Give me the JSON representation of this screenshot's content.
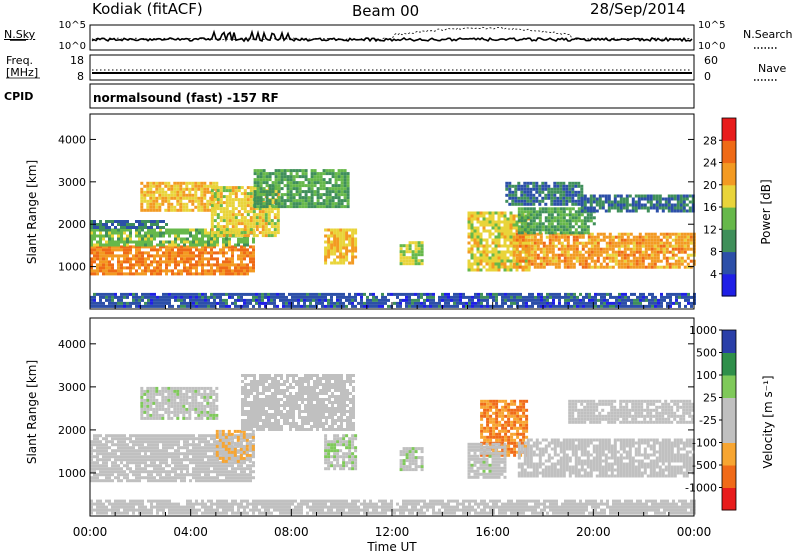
{
  "header": {
    "station": "Kodiak (fitACF)",
    "beam": "Beam 00",
    "date": "28/Sep/2014"
  },
  "strips": {
    "nsky_label": "N.Sky",
    "nsearch_label": "N.Search",
    "freq_label_1": "Freq.",
    "freq_label_2": "[MHz]",
    "nave_label": "Nave",
    "cpid_label": "CPID",
    "cpid_value": "normalsound (fast) -157 RF",
    "noise_ticks_left": [
      "10^5",
      "10^0"
    ],
    "noise_ticks_right": [
      "10^5",
      "10^0"
    ],
    "freq_ticks": [
      "18",
      "8"
    ],
    "nave_ticks": [
      "60",
      "0"
    ]
  },
  "colors": {
    "power": [
      "#1f1fe6",
      "#2c4fa8",
      "#3f8f5a",
      "#66b84a",
      "#e9d43a",
      "#f39a22",
      "#ef6a16",
      "#e81c1c"
    ],
    "velocity": [
      "#e81c1c",
      "#f06a18",
      "#f7a531",
      "#c0c0c0",
      "#c0c0c0",
      "#7fc95a",
      "#2f8f4a",
      "#2a3fa8"
    ],
    "frame": "#000000"
  },
  "chart_data": [
    {
      "type": "heatmap",
      "ylabel": "Slant Range [km]",
      "yticks": [
        "1000",
        "2000",
        "3000",
        "4000"
      ],
      "ylim": [
        0,
        4600
      ],
      "xlim": [
        0,
        24
      ],
      "colorbar": {
        "label": "Power [dB]",
        "ticks": [
          "4",
          "8",
          "12",
          "16",
          "20",
          "24",
          "28"
        ],
        "range": [
          0,
          32
        ]
      },
      "bands": [
        {
          "t0": 0.0,
          "t1": 6.5,
          "r0": 800,
          "r1": 1500,
          "value": 24
        },
        {
          "t0": 0.0,
          "t1": 6.5,
          "r0": 1500,
          "r1": 1900,
          "value": 14
        },
        {
          "t0": 0.0,
          "t1": 3.0,
          "r0": 1900,
          "r1": 2100,
          "value": 8
        },
        {
          "t0": 2.0,
          "t1": 5.0,
          "r0": 2300,
          "r1": 3000,
          "value": 20
        },
        {
          "t0": 4.8,
          "t1": 7.5,
          "r0": 1700,
          "r1": 2900,
          "value": 18
        },
        {
          "t0": 6.5,
          "t1": 10.3,
          "r0": 2400,
          "r1": 3300,
          "value": 12
        },
        {
          "t0": 9.3,
          "t1": 10.6,
          "r0": 1100,
          "r1": 1900,
          "value": 20
        },
        {
          "t0": 12.3,
          "t1": 13.2,
          "r0": 1100,
          "r1": 1600,
          "value": 16
        },
        {
          "t0": 15.0,
          "t1": 17.5,
          "r0": 900,
          "r1": 2300,
          "value": 18
        },
        {
          "t0": 16.8,
          "t1": 24.0,
          "r0": 1000,
          "r1": 1800,
          "value": 22
        },
        {
          "t0": 17.0,
          "t1": 20.0,
          "r0": 1800,
          "r1": 2400,
          "value": 12
        },
        {
          "t0": 19.5,
          "t1": 24.0,
          "r0": 2300,
          "r1": 2700,
          "value": 8
        },
        {
          "t0": 16.5,
          "t1": 19.5,
          "r0": 2500,
          "r1": 3000,
          "value": 8
        },
        {
          "t0": 0.0,
          "t1": 24.0,
          "r0": 80,
          "r1": 380,
          "value": 6
        }
      ]
    },
    {
      "type": "heatmap",
      "ylabel": "Slant Range [km]",
      "yticks": [
        "1000",
        "2000",
        "3000",
        "4000"
      ],
      "ylim": [
        0,
        4600
      ],
      "xlim": [
        0,
        24
      ],
      "xlabel": "Time UT",
      "xticks": [
        "00:00",
        "04:00",
        "08:00",
        "12:00",
        "16:00",
        "20:00",
        "00:00"
      ],
      "colorbar": {
        "label": "Velocity [m s⁻¹]",
        "ticks": [
          "-1000",
          "-500",
          "-100",
          "-25",
          "25",
          "100",
          "500",
          "1000"
        ],
        "range": [
          -1200,
          1200
        ]
      },
      "bands": [
        {
          "t0": 0.0,
          "t1": 6.5,
          "r0": 800,
          "r1": 1900,
          "value": 0
        },
        {
          "t0": 2.0,
          "t1": 5.0,
          "r0": 2300,
          "r1": 3000,
          "value": 150
        },
        {
          "t0": 5.0,
          "t1": 6.5,
          "r0": 1300,
          "r1": 2000,
          "value": -300
        },
        {
          "t0": 6.0,
          "t1": 10.5,
          "r0": 2000,
          "r1": 3300,
          "value": 0
        },
        {
          "t0": 9.3,
          "t1": 10.6,
          "r0": 1100,
          "r1": 1900,
          "value": 200
        },
        {
          "t0": 12.3,
          "t1": 13.2,
          "r0": 1100,
          "r1": 1600,
          "value": 200
        },
        {
          "t0": 15.5,
          "t1": 17.3,
          "r0": 1400,
          "r1": 2700,
          "value": -600
        },
        {
          "t0": 15.0,
          "t1": 16.5,
          "r0": 900,
          "r1": 1700,
          "value": 100
        },
        {
          "t0": 17.0,
          "t1": 24.0,
          "r0": 900,
          "r1": 1800,
          "value": 0
        },
        {
          "t0": 19.0,
          "t1": 24.0,
          "r0": 2200,
          "r1": 2700,
          "value": 0
        },
        {
          "t0": 0.0,
          "t1": 24.0,
          "r0": 80,
          "r1": 380,
          "value": 60
        }
      ]
    }
  ]
}
